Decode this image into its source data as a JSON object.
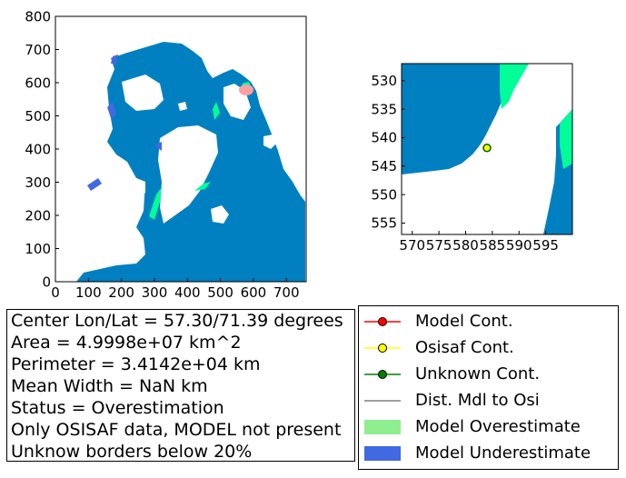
{
  "chart_data": [
    {
      "type": "heatmap",
      "name": "overview-map",
      "xlim": [
        0,
        760
      ],
      "ylim": [
        0,
        800
      ],
      "xticks": [
        "0",
        "100",
        "200",
        "300",
        "400",
        "500",
        "600",
        "700"
      ],
      "yticks": [
        "0",
        "100",
        "200",
        "300",
        "400",
        "500",
        "600",
        "700",
        "800"
      ],
      "highlight_region": {
        "x": 590,
        "y": 585
      }
    },
    {
      "type": "heatmap",
      "name": "zoom-map",
      "xlim": [
        568,
        600
      ],
      "ylim": [
        557,
        527
      ],
      "xticks": [
        "570",
        "575",
        "580",
        "585",
        "590",
        "595"
      ],
      "yticks": [
        "530",
        "535",
        "540",
        "545",
        "550",
        "555"
      ],
      "point": {
        "x": 584,
        "y": 541.8
      }
    }
  ],
  "colors": {
    "ocean": "#0080c0",
    "land": "#ffffff",
    "overestimate": "#90ee90",
    "underestimate": "#4169e1",
    "mint": "#00ff99",
    "highlight": "#ffa0a0"
  },
  "info": {
    "center": "Center Lon/Lat = 57.30/71.39 degrees",
    "area": "Area = 4.9998e+07 km^2",
    "perimeter": "Perimeter = 3.4142e+04 km",
    "width": "Mean Width = NaN km",
    "status": "Status = Overestimation",
    "note": "Only OSISAF data, MODEL not present",
    "borders": "Unknow borders below 20%"
  },
  "legend": [
    {
      "label": "Model Cont.",
      "icon": "line-marker",
      "color": "#ff0000"
    },
    {
      "label": "Osisaf Cont.",
      "icon": "line-marker",
      "color": "#ffff00"
    },
    {
      "label": "Unknown Cont.",
      "icon": "line-marker",
      "color": "#008000"
    },
    {
      "label": "Dist. Mdl to Osi",
      "icon": "line",
      "color": "#808080"
    },
    {
      "label": "Model Overestimate",
      "icon": "patch",
      "color": "#90ee90"
    },
    {
      "label": "Model Underestimate",
      "icon": "patch",
      "color": "#4169e1"
    }
  ]
}
